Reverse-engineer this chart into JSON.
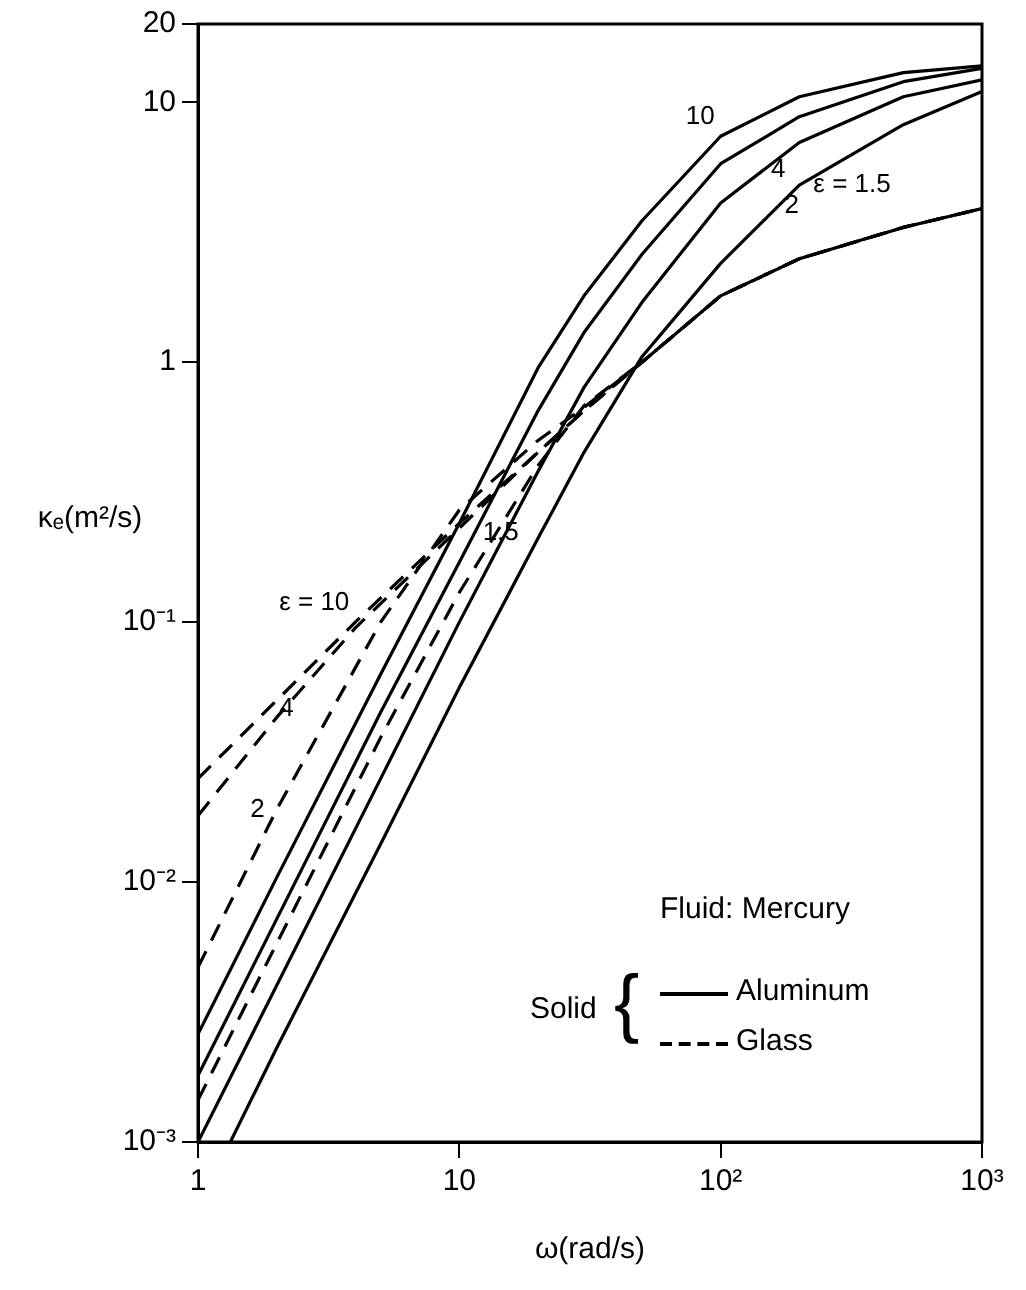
{
  "chart_data": {
    "type": "line",
    "xlabel": "ω(rad/s)",
    "ylabel": "κₑ(m²/s)",
    "log": "xy",
    "grid": false,
    "legend": false,
    "marker": "none",
    "xlim": [
      1,
      1000
    ],
    "ylim": [
      0.001,
      20
    ],
    "xticks": [
      1,
      10,
      {
        "value": 100,
        "label": "10²"
      },
      {
        "value": 1000,
        "label": "10³"
      }
    ],
    "yticks": [
      {
        "value": 0.001,
        "label": "10⁻³"
      },
      {
        "value": 0.01,
        "label": "10⁻²"
      },
      {
        "value": 0.1,
        "label": "10⁻¹"
      },
      1,
      10,
      20
    ],
    "series": [
      {
        "color": "#000000",
        "line_style": "solid",
        "x": [
          1,
          2,
          5,
          10,
          20,
          30,
          50,
          100,
          200,
          500,
          1000
        ],
        "values": [
          0.0026,
          0.0104,
          0.063,
          0.24,
          0.95,
          1.8,
          3.5,
          7.4,
          10.5,
          13,
          13.8
        ]
      },
      {
        "color": "#000000",
        "line_style": "solid",
        "x": [
          1,
          2,
          5,
          10,
          20,
          30,
          50,
          100,
          200,
          500,
          1000
        ],
        "values": [
          0.0018,
          0.0072,
          0.045,
          0.17,
          0.65,
          1.3,
          2.6,
          5.8,
          8.8,
          12,
          13.5
        ]
      },
      {
        "color": "#000000",
        "line_style": "solid",
        "x": [
          1,
          2,
          5,
          10,
          20,
          30,
          50,
          100,
          200,
          500,
          1000
        ],
        "values": [
          0.001,
          0.004,
          0.025,
          0.1,
          0.38,
          0.8,
          1.7,
          4.1,
          7,
          10.5,
          12.2
        ]
      },
      {
        "color": "#000000",
        "line_style": "solid",
        "x": [
          1.33,
          2,
          5,
          10,
          20,
          30,
          50,
          100,
          200,
          500,
          1000
        ],
        "values": [
          0.001,
          0.0023,
          0.014,
          0.056,
          0.21,
          0.45,
          1.05,
          2.4,
          4.8,
          8.2,
          11
        ]
      },
      {
        "color": "#000000",
        "line_style": "dashed",
        "x": [
          1,
          2,
          4,
          10,
          20,
          30,
          50,
          100,
          200,
          500,
          1000
        ],
        "values": [
          0.025,
          0.05,
          0.1,
          0.24,
          0.45,
          0.65,
          1.0,
          1.8,
          2.5,
          3.3,
          3.9
        ]
      },
      {
        "color": "#000000",
        "line_style": "dashed",
        "x": [
          1,
          2,
          4,
          10,
          20,
          30,
          50,
          100,
          200,
          500,
          1000
        ],
        "values": [
          0.018,
          0.043,
          0.095,
          0.23,
          0.45,
          0.65,
          1.0,
          1.8,
          2.5,
          3.3,
          3.9
        ]
      },
      {
        "color": "#000000",
        "line_style": "dashed",
        "x": [
          1,
          2,
          5,
          10,
          20,
          30,
          50,
          100,
          200,
          500,
          1000
        ],
        "values": [
          0.0047,
          0.019,
          0.1,
          0.27,
          0.5,
          0.67,
          1.0,
          1.8,
          2.5,
          3.3,
          3.9
        ]
      },
      {
        "color": "#000000",
        "line_style": "dashed",
        "x": [
          1,
          2,
          5,
          10,
          20,
          30,
          50,
          100,
          200,
          500,
          1000
        ],
        "values": [
          0.00145,
          0.0058,
          0.036,
          0.13,
          0.4,
          0.68,
          1.0,
          1.8,
          2.5,
          3.3,
          3.9
        ]
      }
    ],
    "annotations": [
      {
        "text": "10",
        "x": 100,
        "y": 7.4
      },
      {
        "text": "4",
        "x": 166,
        "y": 5.5
      },
      {
        "text": "2",
        "x": 187,
        "y": 4.0
      },
      {
        "text": "ε = 1.5",
        "x": 200,
        "y": 4.8
      },
      {
        "text": "ε = 10",
        "x": 4,
        "y": 0.1
      },
      {
        "text": "4",
        "x": 2.18,
        "y": 0.0465
      },
      {
        "text": "2",
        "x": 2,
        "y": 0.019
      },
      {
        "text": "1.5",
        "x": 14.4,
        "y": 0.22
      },
      "Fluid: Mercury",
      "Solid",
      "{",
      "Aluminum",
      "Glass"
    ]
  }
}
